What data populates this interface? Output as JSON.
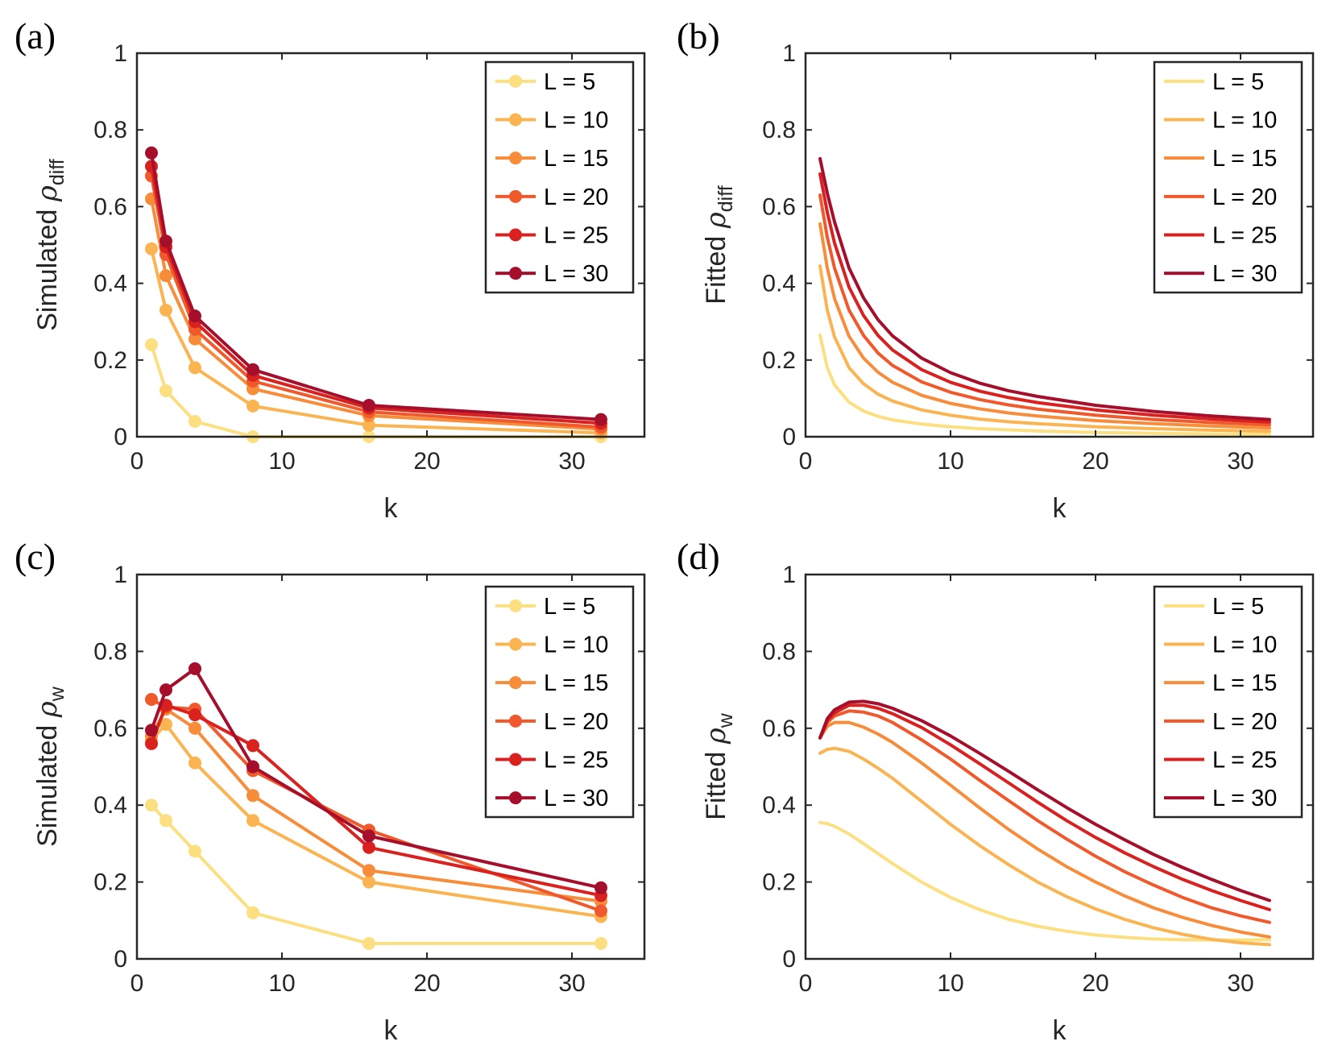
{
  "colors": [
    "#FCDF80",
    "#FAB452",
    "#F78D3A",
    "#F0592C",
    "#D92120",
    "#A50F2B"
  ],
  "chart_data": [
    {
      "panel": "(a)",
      "type": "line",
      "markers": true,
      "xlabel": "k",
      "ylabel_main": "Simulated ",
      "ylabel_symbol": "ρ",
      "ylabel_sub": "diff",
      "xlim": [
        0,
        35
      ],
      "ylim": [
        0,
        1
      ],
      "xticks": [
        "0",
        "10",
        "20",
        "30"
      ],
      "yticks": [
        "0",
        "0.2",
        "0.4",
        "0.6",
        "0.8",
        "1"
      ],
      "x": [
        1,
        2,
        4,
        8,
        16,
        32
      ],
      "series": [
        {
          "name": "L = 5",
          "values": [
            0.24,
            0.12,
            0.04,
            0.0,
            0.0,
            0.0
          ]
        },
        {
          "name": "L = 10",
          "values": [
            0.49,
            0.33,
            0.18,
            0.08,
            0.03,
            0.01
          ]
        },
        {
          "name": "L = 15",
          "values": [
            0.62,
            0.42,
            0.255,
            0.125,
            0.055,
            0.02
          ]
        },
        {
          "name": "L = 20",
          "values": [
            0.68,
            0.475,
            0.28,
            0.145,
            0.065,
            0.025
          ]
        },
        {
          "name": "L = 25",
          "values": [
            0.705,
            0.495,
            0.3,
            0.16,
            0.075,
            0.035
          ]
        },
        {
          "name": "L = 30",
          "values": [
            0.74,
            0.51,
            0.315,
            0.175,
            0.082,
            0.045
          ]
        }
      ]
    },
    {
      "panel": "(b)",
      "type": "line",
      "markers": false,
      "xlabel": "k",
      "ylabel_main": "Fitted ",
      "ylabel_symbol": "ρ",
      "ylabel_sub": "diff",
      "xlim": [
        0,
        35
      ],
      "ylim": [
        0,
        1
      ],
      "xticks": [
        "0",
        "10",
        "20",
        "30"
      ],
      "yticks": [
        "0",
        "0.2",
        "0.4",
        "0.6",
        "0.8",
        "1"
      ],
      "x": [
        1,
        1.5,
        2,
        3,
        4,
        5,
        6,
        8,
        10,
        12,
        14,
        16,
        20,
        24,
        28,
        32
      ],
      "series": [
        {
          "name": "L = 5",
          "values": [
            0.265,
            0.18,
            0.135,
            0.09,
            0.067,
            0.053,
            0.044,
            0.033,
            0.026,
            0.021,
            0.018,
            0.015,
            0.011,
            0.009,
            0.007,
            0.006
          ]
        },
        {
          "name": "L = 10",
          "values": [
            0.445,
            0.33,
            0.26,
            0.18,
            0.138,
            0.111,
            0.093,
            0.07,
            0.056,
            0.046,
            0.039,
            0.034,
            0.026,
            0.021,
            0.017,
            0.014
          ]
        },
        {
          "name": "L = 15",
          "values": [
            0.555,
            0.44,
            0.36,
            0.262,
            0.205,
            0.168,
            0.142,
            0.108,
            0.087,
            0.073,
            0.062,
            0.054,
            0.042,
            0.034,
            0.028,
            0.023
          ]
        },
        {
          "name": "L = 20",
          "values": [
            0.63,
            0.52,
            0.44,
            0.33,
            0.264,
            0.218,
            0.186,
            0.143,
            0.116,
            0.097,
            0.083,
            0.072,
            0.056,
            0.045,
            0.037,
            0.031
          ]
        },
        {
          "name": "L = 25",
          "values": [
            0.685,
            0.585,
            0.505,
            0.39,
            0.316,
            0.264,
            0.226,
            0.175,
            0.142,
            0.119,
            0.102,
            0.089,
            0.07,
            0.056,
            0.046,
            0.038
          ]
        },
        {
          "name": "L = 30",
          "values": [
            0.725,
            0.635,
            0.56,
            0.44,
            0.362,
            0.305,
            0.263,
            0.205,
            0.167,
            0.14,
            0.12,
            0.105,
            0.082,
            0.066,
            0.054,
            0.045
          ]
        }
      ]
    },
    {
      "panel": "(c)",
      "type": "line",
      "markers": true,
      "xlabel": "k",
      "ylabel_main": "Simulated ",
      "ylabel_symbol": "ρ",
      "ylabel_sub": "w",
      "xlim": [
        0,
        35
      ],
      "ylim": [
        0,
        1
      ],
      "xticks": [
        "0",
        "10",
        "20",
        "30"
      ],
      "yticks": [
        "0",
        "0.2",
        "0.4",
        "0.6",
        "0.8",
        "1"
      ],
      "x": [
        1,
        2,
        4,
        8,
        16,
        32
      ],
      "series": [
        {
          "name": "L = 5",
          "values": [
            0.4,
            0.36,
            0.28,
            0.12,
            0.04,
            0.04
          ]
        },
        {
          "name": "L = 10",
          "values": [
            0.57,
            0.61,
            0.51,
            0.36,
            0.2,
            0.11
          ]
        },
        {
          "name": "L = 15",
          "values": [
            0.58,
            0.65,
            0.6,
            0.425,
            0.23,
            0.15
          ]
        },
        {
          "name": "L = 20",
          "values": [
            0.675,
            0.655,
            0.65,
            0.49,
            0.335,
            0.125
          ]
        },
        {
          "name": "L = 25",
          "values": [
            0.56,
            0.66,
            0.635,
            0.555,
            0.29,
            0.165
          ]
        },
        {
          "name": "L = 30",
          "values": [
            0.595,
            0.7,
            0.755,
            0.5,
            0.32,
            0.185
          ]
        }
      ]
    },
    {
      "panel": "(d)",
      "type": "line",
      "markers": false,
      "xlabel": "k",
      "ylabel_main": "Fitted ",
      "ylabel_symbol": "ρ",
      "ylabel_sub": "w",
      "xlim": [
        0,
        35
      ],
      "ylim": [
        0,
        1
      ],
      "xticks": [
        "0",
        "10",
        "20",
        "30"
      ],
      "yticks": [
        "0",
        "0.2",
        "0.4",
        "0.6",
        "0.8",
        "1"
      ],
      "x": [
        1,
        1.5,
        2,
        3,
        4,
        5,
        6,
        8,
        10,
        12,
        14,
        16,
        18,
        20,
        22,
        24,
        26,
        28,
        30,
        32
      ],
      "series": [
        {
          "name": "L = 5",
          "values": [
            0.355,
            0.352,
            0.345,
            0.325,
            0.3,
            0.274,
            0.248,
            0.2,
            0.16,
            0.128,
            0.103,
            0.085,
            0.072,
            0.062,
            0.056,
            0.052,
            0.05,
            0.049,
            0.049,
            0.05
          ]
        },
        {
          "name": "L = 10",
          "values": [
            0.535,
            0.545,
            0.548,
            0.54,
            0.52,
            0.496,
            0.47,
            0.41,
            0.35,
            0.295,
            0.245,
            0.2,
            0.162,
            0.13,
            0.103,
            0.081,
            0.064,
            0.051,
            0.042,
            0.037
          ]
        },
        {
          "name": "L = 15",
          "values": [
            0.575,
            0.605,
            0.615,
            0.615,
            0.603,
            0.585,
            0.563,
            0.51,
            0.452,
            0.393,
            0.337,
            0.286,
            0.24,
            0.2,
            0.164,
            0.133,
            0.108,
            0.087,
            0.07,
            0.057
          ]
        },
        {
          "name": "L = 20",
          "values": [
            0.575,
            0.615,
            0.632,
            0.645,
            0.642,
            0.632,
            0.615,
            0.57,
            0.52,
            0.465,
            0.412,
            0.36,
            0.312,
            0.267,
            0.227,
            0.192,
            0.16,
            0.133,
            0.112,
            0.095
          ]
        },
        {
          "name": "L = 25",
          "values": [
            0.575,
            0.62,
            0.64,
            0.66,
            0.66,
            0.652,
            0.638,
            0.602,
            0.557,
            0.508,
            0.458,
            0.408,
            0.36,
            0.316,
            0.276,
            0.24,
            0.207,
            0.178,
            0.152,
            0.128
          ]
        },
        {
          "name": "L = 30",
          "values": [
            0.575,
            0.625,
            0.648,
            0.668,
            0.67,
            0.664,
            0.652,
            0.62,
            0.58,
            0.535,
            0.488,
            0.44,
            0.394,
            0.35,
            0.31,
            0.272,
            0.238,
            0.207,
            0.178,
            0.152
          ]
        }
      ]
    }
  ]
}
